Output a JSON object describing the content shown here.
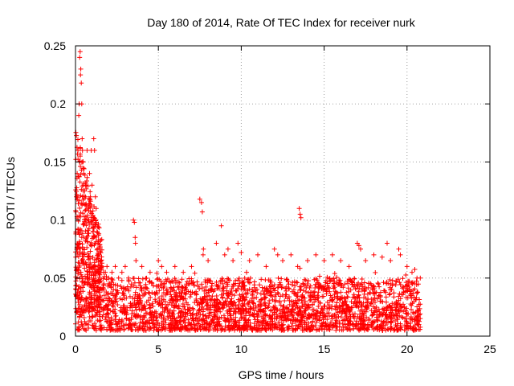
{
  "chart_data": {
    "type": "scatter",
    "title": "Day 180 of 2014, Rate Of TEC Index for receiver nurk",
    "xlabel": "GPS time / hours",
    "ylabel": "ROTI / TECUs",
    "xlim": [
      0,
      25
    ],
    "ylim": [
      0,
      0.25
    ],
    "x_ticks": [
      0,
      5,
      10,
      15,
      20,
      25
    ],
    "x_tick_labels": [
      "0",
      "5",
      "10",
      "15",
      "20",
      "25"
    ],
    "y_ticks": [
      0,
      0.05,
      0.1,
      0.15,
      0.2,
      0.25
    ],
    "y_tick_labels": [
      "0",
      "0.05",
      "0.1",
      "0.15",
      "0.2",
      "0.25"
    ],
    "grid": true,
    "marker": "+",
    "color": "#ff0000",
    "series": [
      {
        "x": [
          0.05,
          0.1,
          0.15,
          0.2,
          0.22,
          0.25,
          0.28,
          0.3,
          0.32,
          0.35,
          0.38,
          0.4,
          0.42,
          0.45,
          0.48,
          0.5,
          0.55,
          0.6,
          0.65,
          0.7,
          0.75,
          0.8,
          0.85,
          0.9,
          0.95,
          1.0,
          1.05,
          1.1,
          1.15,
          1.2,
          1.25,
          1.3,
          1.35,
          1.4,
          1.5,
          1.6,
          1.7,
          1.8,
          1.9,
          2.0,
          2.2,
          2.4,
          2.6,
          2.8,
          3.0,
          3.2,
          3.5,
          3.55,
          3.6,
          3.62,
          3.65,
          4.0,
          4.5,
          5.0,
          5.2,
          5.5,
          6.0,
          6.5,
          7.0,
          7.5,
          7.6,
          7.65,
          7.7,
          7.72,
          8.0,
          8.5,
          8.8,
          9.0,
          9.2,
          9.5,
          9.8,
          10.0,
          10.5,
          11.0,
          11.5,
          12.0,
          12.2,
          12.5,
          13.0,
          13.4,
          13.5,
          13.55,
          13.6,
          14.0,
          14.5,
          15.0,
          15.5,
          16.0,
          16.5,
          17.0,
          17.1,
          17.2,
          17.5,
          18.0,
          18.5,
          18.8,
          19.0,
          19.5,
          19.6,
          20.0,
          20.3,
          20.6,
          20.8
        ],
        "y": [
          0.12,
          0.14,
          0.16,
          0.19,
          0.2,
          0.24,
          0.245,
          0.225,
          0.23,
          0.218,
          0.2,
          0.17,
          0.16,
          0.15,
          0.14,
          0.13,
          0.125,
          0.12,
          0.13,
          0.16,
          0.11,
          0.1,
          0.14,
          0.12,
          0.16,
          0.13,
          0.1,
          0.17,
          0.16,
          0.12,
          0.11,
          0.09,
          0.08,
          0.07,
          0.065,
          0.06,
          0.055,
          0.055,
          0.06,
          0.05,
          0.055,
          0.06,
          0.05,
          0.055,
          0.06,
          0.05,
          0.1,
          0.098,
          0.085,
          0.08,
          0.065,
          0.06,
          0.055,
          0.065,
          0.06,
          0.055,
          0.06,
          0.055,
          0.06,
          0.118,
          0.115,
          0.107,
          0.07,
          0.075,
          0.065,
          0.08,
          0.095,
          0.07,
          0.075,
          0.065,
          0.08,
          0.072,
          0.065,
          0.07,
          0.06,
          0.075,
          0.07,
          0.065,
          0.07,
          0.06,
          0.11,
          0.105,
          0.102,
          0.065,
          0.07,
          0.065,
          0.07,
          0.065,
          0.06,
          0.08,
          0.078,
          0.075,
          0.065,
          0.07,
          0.068,
          0.08,
          0.065,
          0.075,
          0.07,
          0.06,
          0.055,
          0.05,
          0.05
        ],
        "noise_band": [
          0.005,
          0.05
        ]
      }
    ]
  }
}
